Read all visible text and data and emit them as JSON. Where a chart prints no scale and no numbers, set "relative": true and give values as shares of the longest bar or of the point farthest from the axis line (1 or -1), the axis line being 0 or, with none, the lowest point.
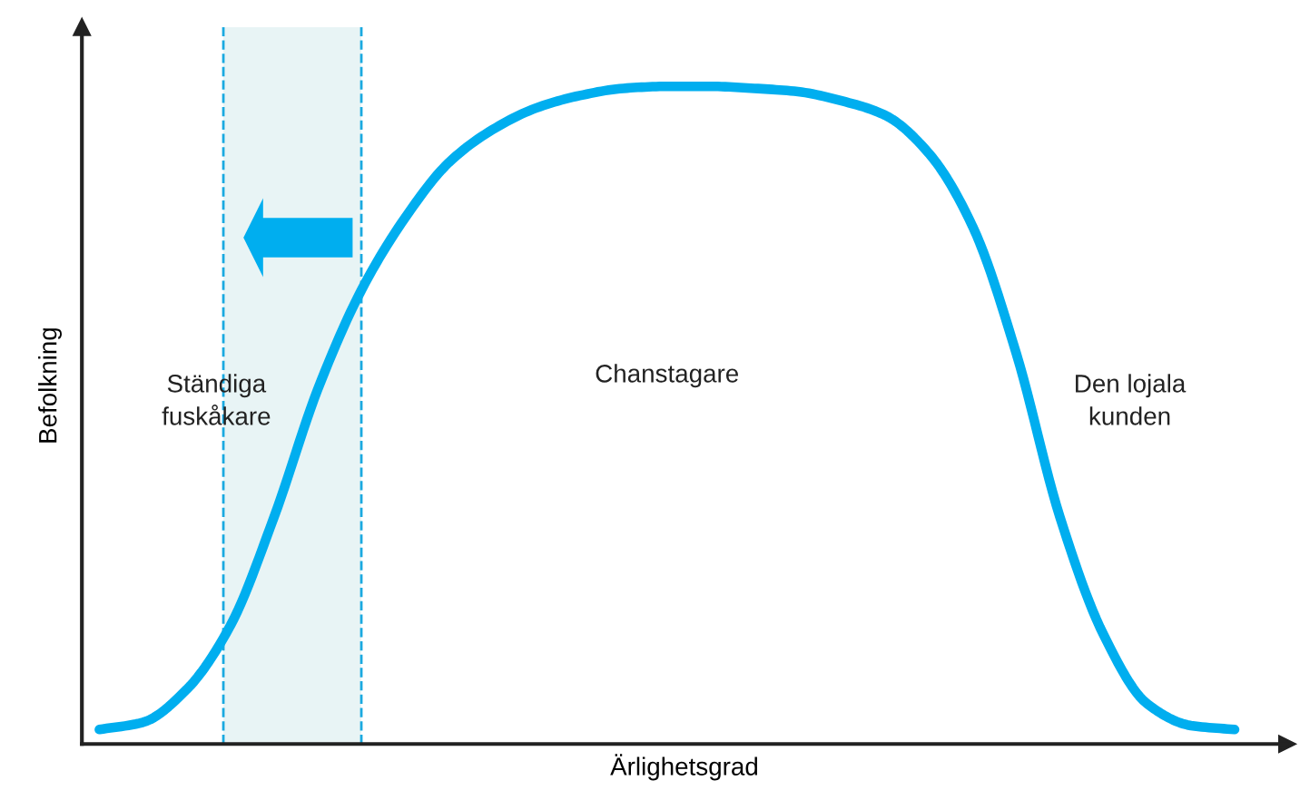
{
  "chart_data": {
    "type": "line",
    "relative": true,
    "xlabel": "Ärlighetsgrad",
    "ylabel": "Befolkning",
    "categories": [
      null,
      null,
      null,
      null,
      null,
      null,
      null,
      null,
      null,
      null,
      null,
      null,
      null,
      null,
      null,
      null,
      null,
      null,
      null,
      null,
      null,
      null,
      null,
      null,
      null,
      null,
      null
    ],
    "series": [
      {
        "color": "#00aeef",
        "values": [
          0.022,
          0.033,
          0.083,
          0.18,
          0.345,
          0.539,
          0.69,
          0.8,
          0.884,
          0.934,
          0.967,
          0.986,
          0.997,
          1.0,
          1.0,
          0.997,
          0.992,
          0.978,
          0.956,
          0.898,
          0.787,
          0.594,
          0.345,
          0.166,
          0.061,
          0.028,
          0.022
        ]
      }
    ],
    "annotations": [
      "Ständiga\nfuskåkare",
      "Chanstagare",
      "Den lojala\nkunden"
    ],
    "legend": false,
    "marker": "none",
    "line_style": "solid"
  }
}
